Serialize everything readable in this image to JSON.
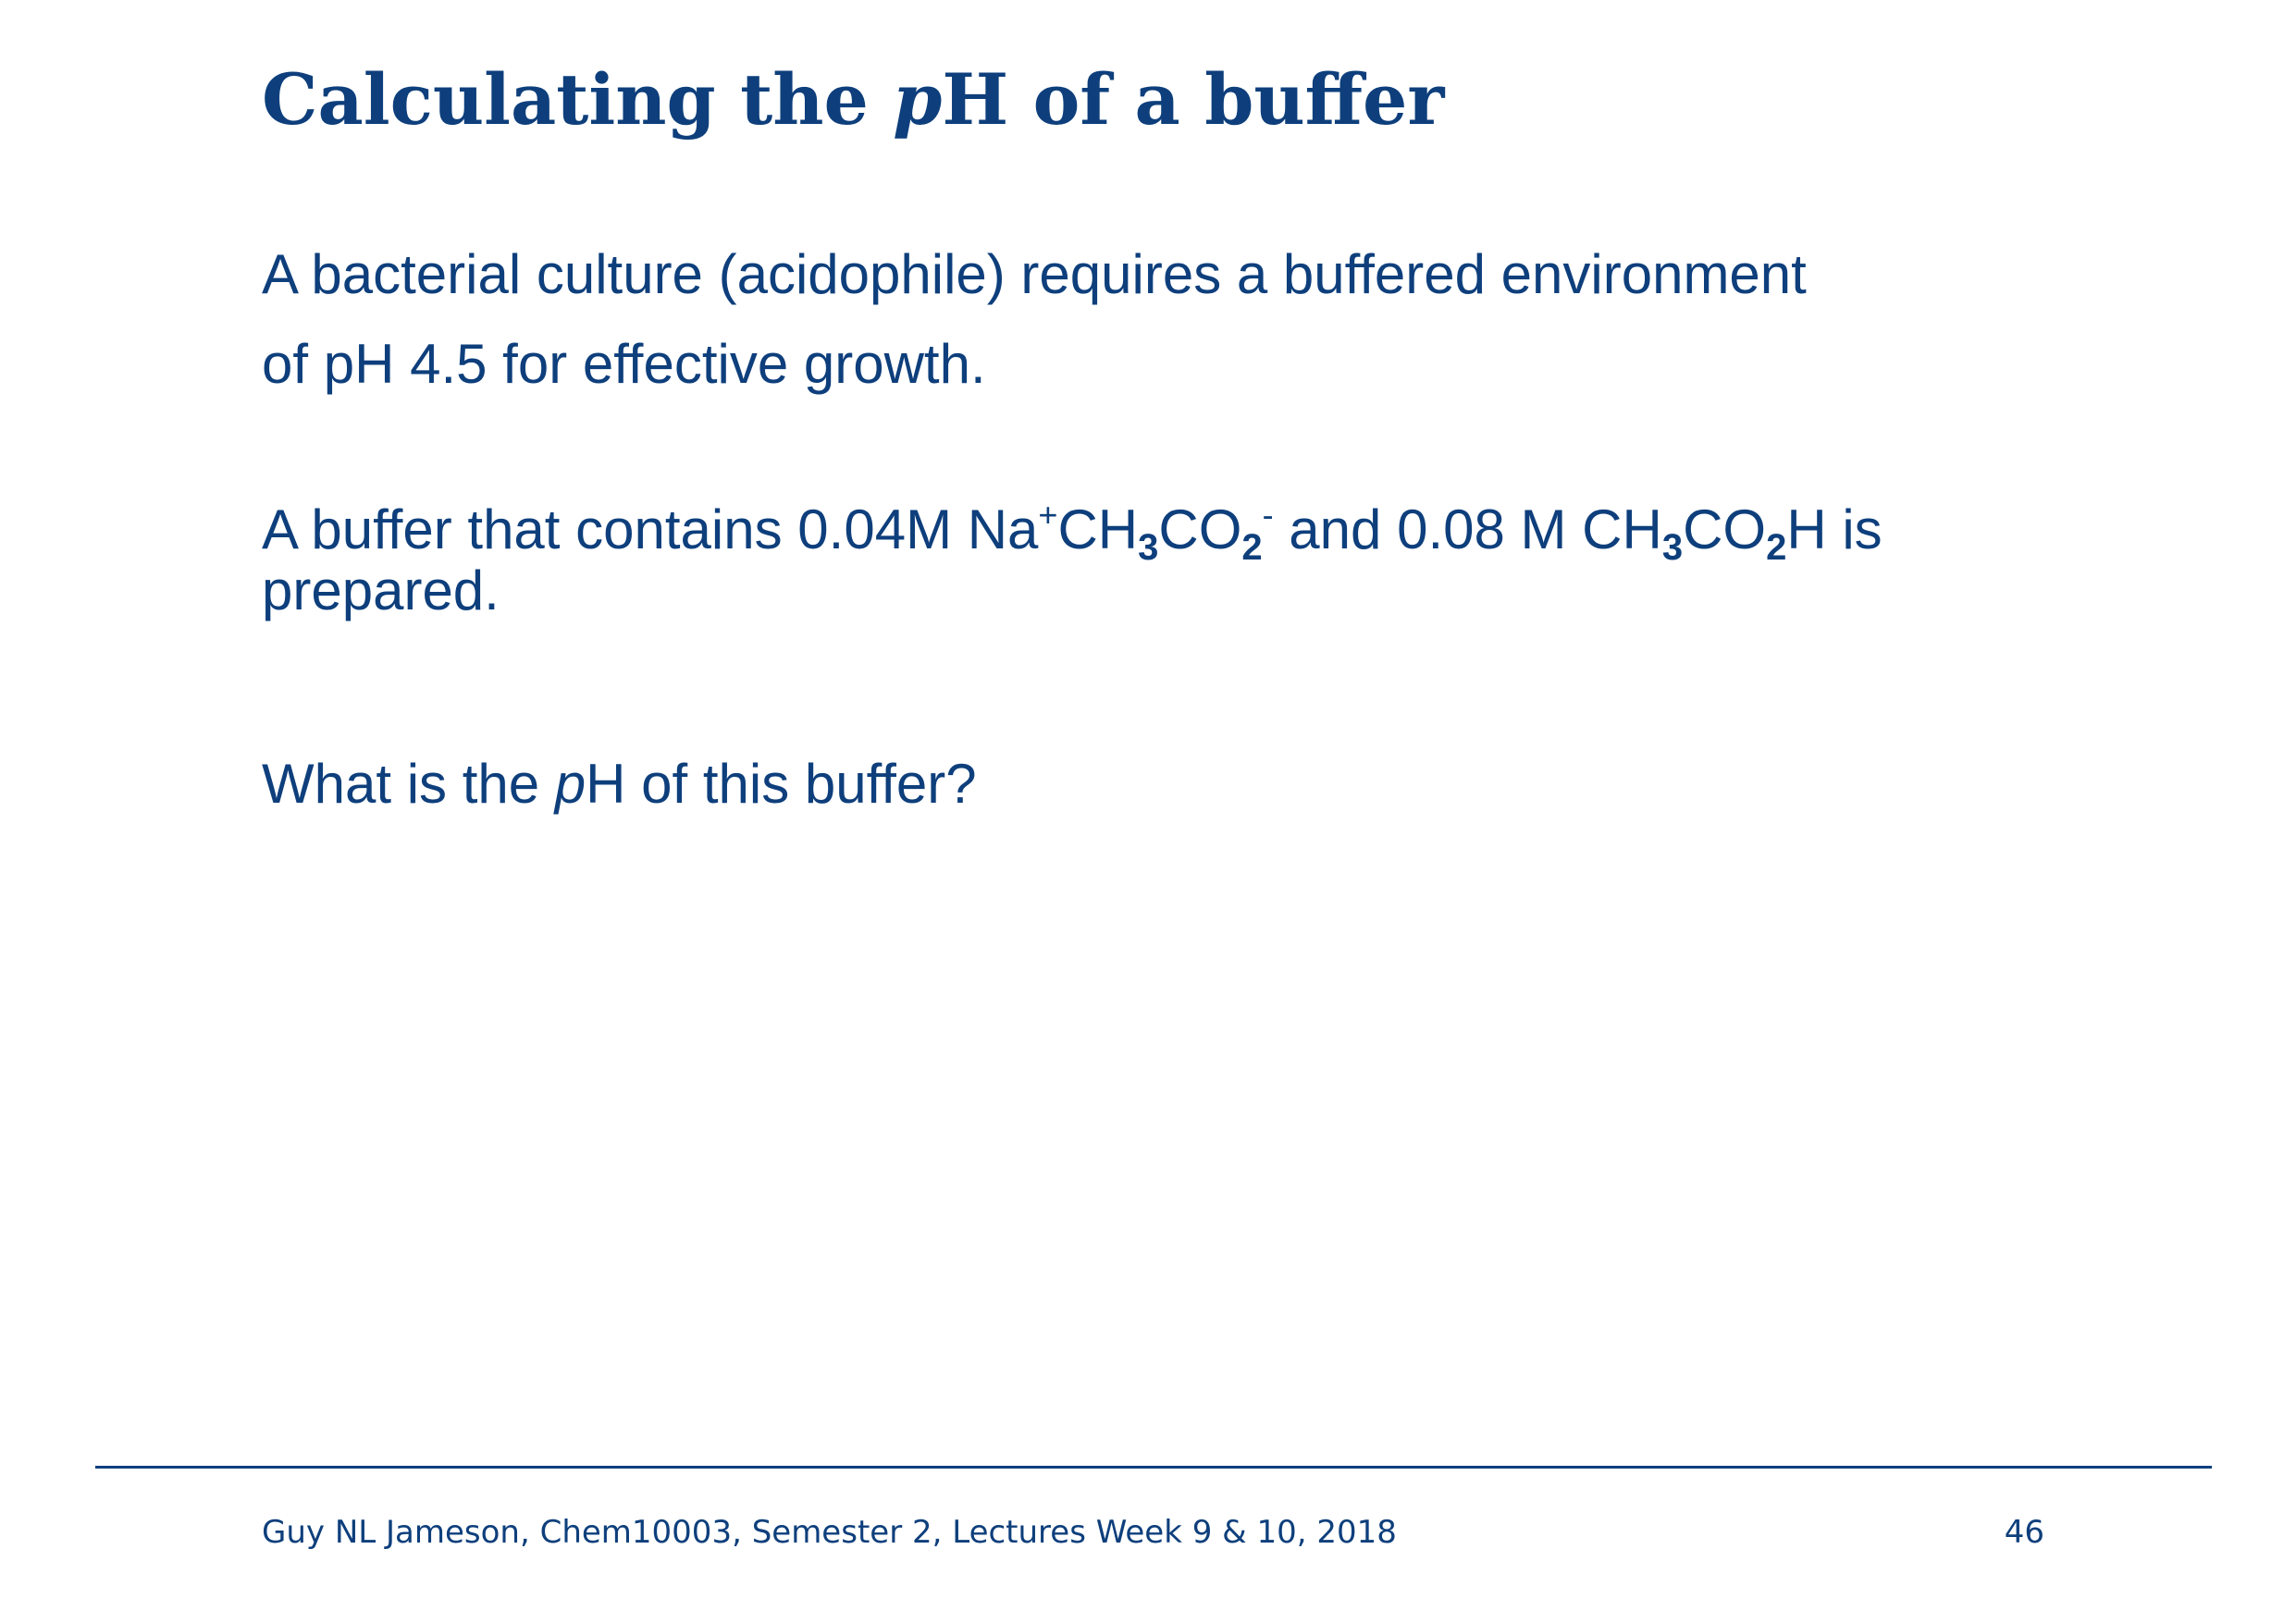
{
  "slide": {
    "title": {
      "before": "Calculating the ",
      "p": "p",
      "after": "H of a buffer"
    },
    "paragraph1": {
      "line1": "A bacterial culture (acidophile) requires a buffered environment",
      "line2": "of pH 4.5 for effective growth."
    },
    "paragraph2": {
      "t1": "A buffer that contains 0.04M Na",
      "sup_plus": "+",
      "t2": "CH",
      "sub_3a": "3",
      "t3": "CO",
      "sub_2a": "2",
      "sup_minus": "-",
      "t4": " and 0.08 M CH",
      "sub_3b": "3",
      "t5": "CO",
      "sub_2b": "2",
      "t6": "H is",
      "line2": "prepared."
    },
    "paragraph3": {
      "before": "What is the ",
      "p": "p",
      "after": "H of this buffer?"
    }
  },
  "footer": {
    "text": "Guy NL Jameson, Chem10003, Semester 2, Lectures Week 9 & 10, 2018",
    "page_number": "46"
  },
  "colors": {
    "text": "#0e3f7c",
    "background": "#ffffff"
  }
}
